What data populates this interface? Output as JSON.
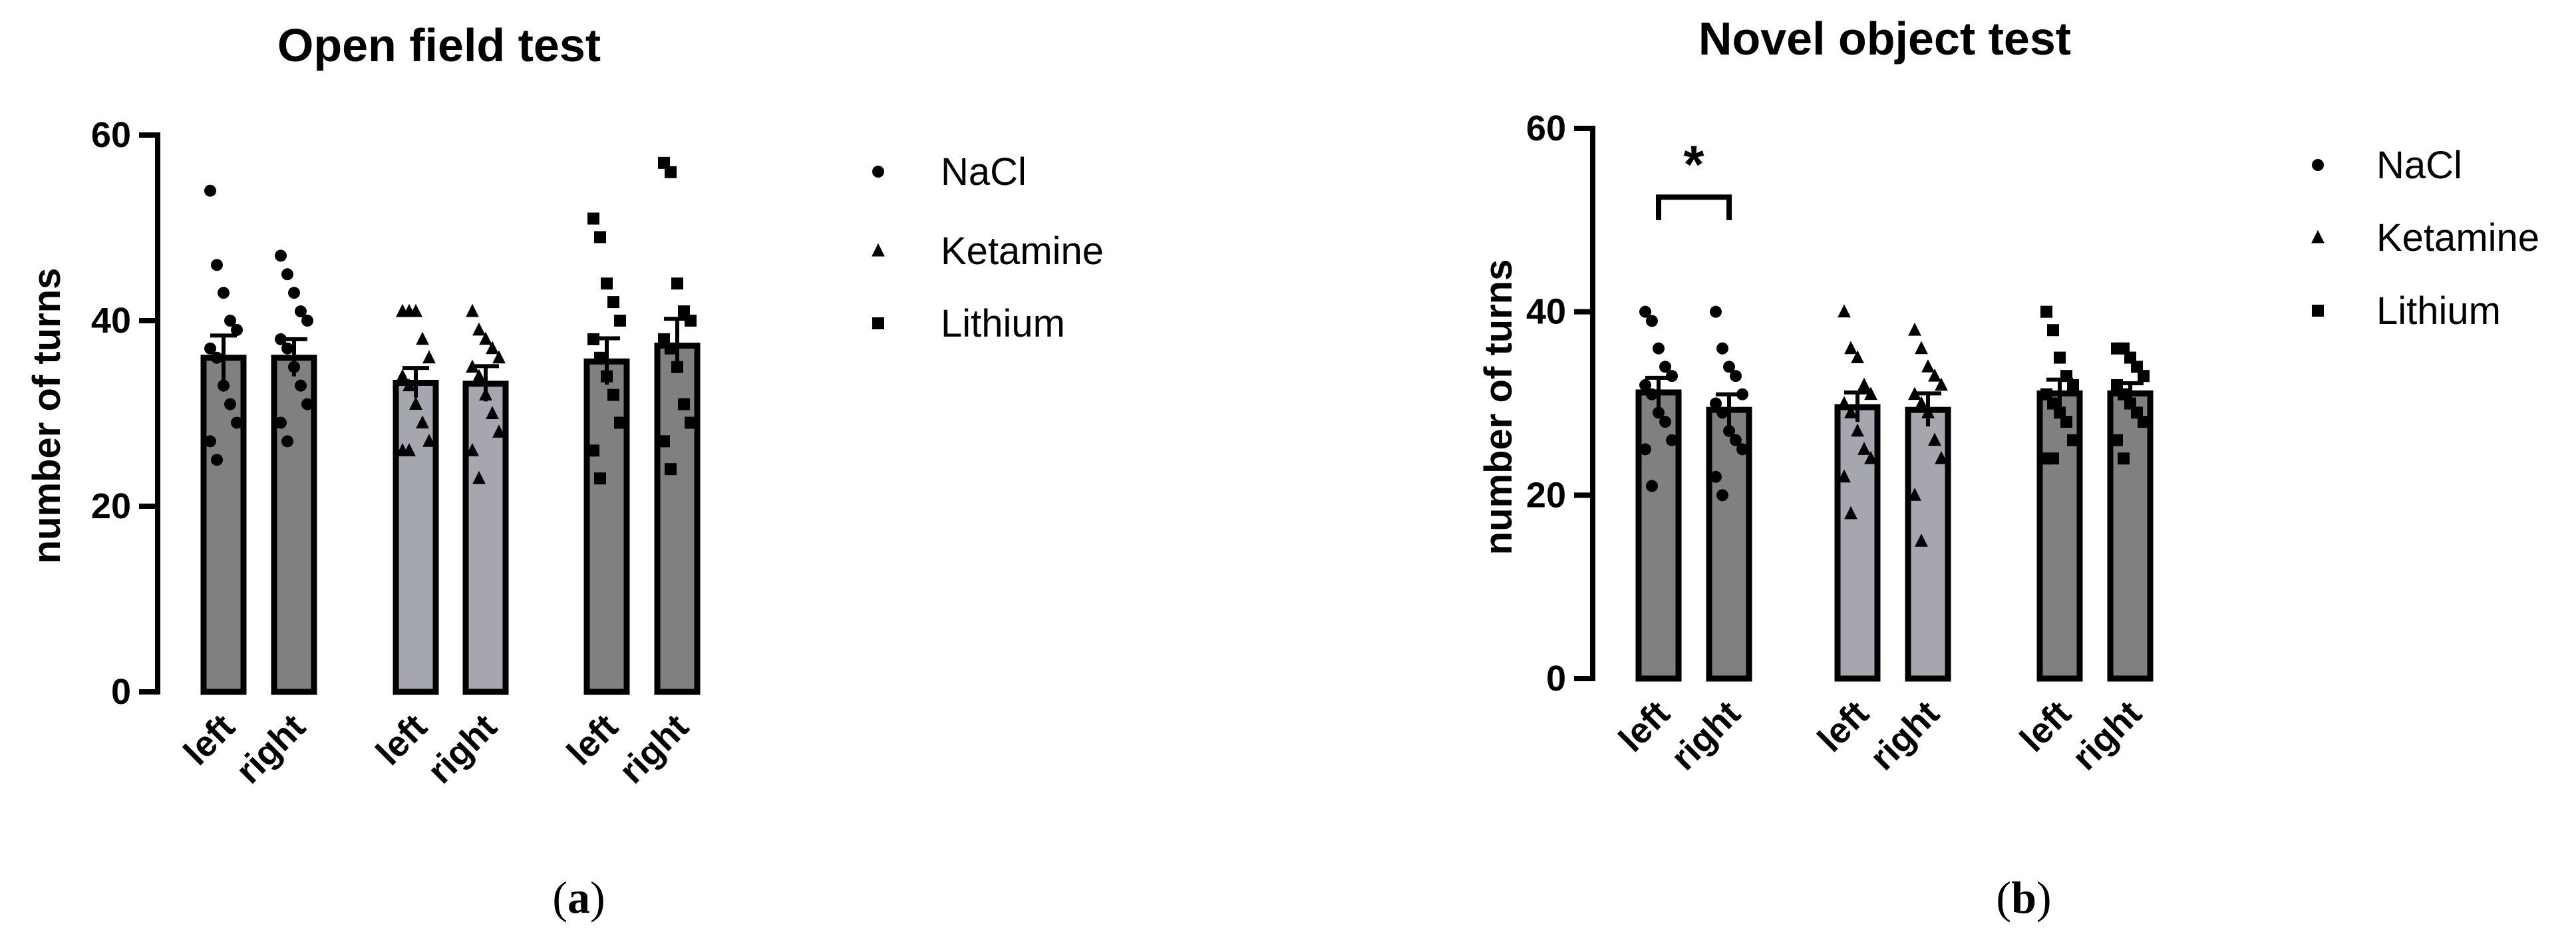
{
  "figures": [
    {
      "caption_open": "(",
      "caption_letter": "a",
      "caption_close": ")"
    },
    {
      "caption_open": "(",
      "caption_letter": "b",
      "caption_close": ")"
    }
  ],
  "chart_data": [
    {
      "type": "bar",
      "title": "Open field test",
      "xlabel": "",
      "ylabel": "number of turns",
      "ylim": [
        0,
        60
      ],
      "yticks": [
        "0",
        "20",
        "40",
        "60"
      ],
      "categories": [
        "left",
        "right",
        "left",
        "right",
        "left",
        "right"
      ],
      "groups": [
        "NaCl",
        "NaCl",
        "Ketamine",
        "Ketamine",
        "Lithium",
        "Lithium"
      ],
      "bar_colors": [
        "#808080",
        "#808080",
        "#a6a6ae",
        "#a6a6ae",
        "#808080",
        "#808080"
      ],
      "values": [
        36,
        36,
        33.3,
        33.2,
        35.6,
        37.3
      ],
      "sem": [
        2.4,
        2.0,
        1.6,
        1.9,
        2.5,
        2.9
      ],
      "points": [
        [
          54,
          46,
          43,
          40,
          39,
          37,
          36,
          33,
          31,
          29,
          27,
          25
        ],
        [
          47,
          45,
          43,
          41,
          40,
          38,
          37,
          35,
          33,
          31,
          29,
          27
        ],
        [
          41,
          41,
          41,
          38,
          36,
          34,
          33,
          31,
          29,
          27,
          26,
          26
        ],
        [
          41,
          39,
          38,
          37,
          36,
          35,
          34,
          32,
          30,
          28,
          26,
          23
        ],
        [
          51,
          49,
          44,
          42,
          40,
          38,
          36,
          34,
          32,
          29,
          26,
          23
        ],
        [
          57,
          56,
          44,
          41,
          40,
          38,
          37,
          35,
          31,
          29,
          27,
          24
        ]
      ],
      "legend": [
        {
          "label": "NaCl",
          "marker": "circle"
        },
        {
          "label": "Ketamine",
          "marker": "triangle"
        },
        {
          "label": "Lithium",
          "marker": "square"
        }
      ],
      "legend_position": "right",
      "grid": false,
      "significance": []
    },
    {
      "type": "bar",
      "title": "Novel object test",
      "xlabel": "",
      "ylabel": "number of turns",
      "ylim": [
        0,
        60
      ],
      "yticks": [
        "0",
        "20",
        "40",
        "60"
      ],
      "categories": [
        "left",
        "right",
        "left",
        "right",
        "left",
        "right"
      ],
      "groups": [
        "NaCl",
        "NaCl",
        "Ketamine",
        "Ketamine",
        "Lithium",
        "Lithium"
      ],
      "bar_colors": [
        "#808080",
        "#808080",
        "#a6a6ae",
        "#a6a6ae",
        "#808080",
        "#808080"
      ],
      "values": [
        31.2,
        29.3,
        29.6,
        29.3,
        31.1,
        31.1
      ],
      "sem": [
        1.6,
        1.7,
        1.6,
        1.8,
        1.5,
        1.1
      ],
      "points": [
        [
          40,
          39,
          36,
          34,
          33,
          32,
          31,
          29,
          28,
          26,
          25,
          21
        ],
        [
          40,
          36,
          34,
          33,
          31,
          30,
          29,
          27,
          26,
          25,
          22,
          20
        ],
        [
          40,
          36,
          35,
          32,
          31,
          30,
          29,
          27,
          25,
          24,
          22,
          18
        ],
        [
          38,
          36,
          34,
          33,
          32,
          31,
          30,
          29,
          26,
          24,
          20,
          15
        ],
        [
          40,
          38,
          35,
          33,
          32,
          31,
          30,
          29,
          28,
          26,
          24,
          24
        ],
        [
          36,
          36,
          35,
          34,
          33,
          32,
          31,
          30,
          29,
          28,
          26,
          24
        ]
      ],
      "legend": [
        {
          "label": "NaCl",
          "marker": "circle"
        },
        {
          "label": "Ketamine",
          "marker": "triangle"
        },
        {
          "label": "Lithium",
          "marker": "square"
        }
      ],
      "legend_position": "right",
      "grid": false,
      "significance": [
        {
          "from": 0,
          "to": 1,
          "label": "*"
        }
      ]
    }
  ]
}
